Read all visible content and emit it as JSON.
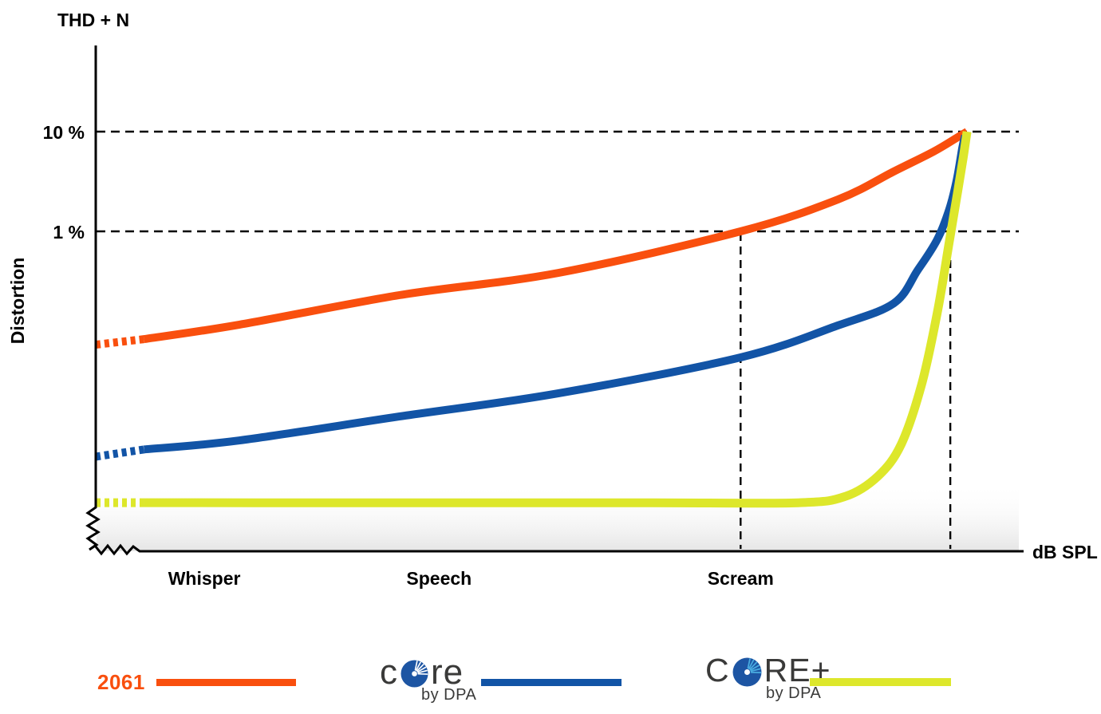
{
  "title": "THD + N",
  "y_axis": {
    "label": "Distortion",
    "ticks": [
      {
        "label": "10 %",
        "value": 10
      },
      {
        "label": "1 %",
        "value": 1
      }
    ]
  },
  "x_axis": {
    "label": "dB SPL",
    "categories": [
      {
        "label": "Whisper",
        "pos": 11.7
      },
      {
        "label": "Speech",
        "pos": 37.0
      },
      {
        "label": "Scream",
        "pos": 69.5
      }
    ]
  },
  "chart_data": {
    "type": "line",
    "title": "THD + N",
    "xlabel": "dB SPL",
    "ylabel": "Distortion",
    "y_scale": "log",
    "y_gridlines_percent": [
      10,
      1
    ],
    "x_axis_note": "no numeric SPL ticks shown; positions are relative 0-100 across the axis",
    "x_categories": [
      {
        "label": "Whisper",
        "pos": 11.7
      },
      {
        "label": "Speech",
        "pos": 37.0
      },
      {
        "label": "Scream",
        "pos": 69.5
      }
    ],
    "vertical_guides": [
      {
        "pos": 69.5,
        "from_percent": 1.0
      },
      {
        "pos": 92.1,
        "from_percent": 1.0
      }
    ],
    "annotations": [
      "axis break (zigzag) at bottom of distortion axis",
      "each curve starts with a dotted segment at lowest SPL",
      "2061 reaches 1% distortion at Scream level and 10% at maximum SPL",
      "CORE stays below 0.1% until near maximum SPL, rising steeply to ~10%",
      "CORE+ stays flat near 0.002% until near maximum SPL, then rises steeply to 10%"
    ],
    "series": [
      {
        "name": "2061",
        "color": "#F94F0E",
        "dashed_head_points": 2,
        "points": [
          [
            0,
            0.073
          ],
          [
            5.2,
            0.083
          ],
          [
            15.5,
            0.116
          ],
          [
            32.7,
            0.229
          ],
          [
            49.9,
            0.384
          ],
          [
            69.5,
            1.0
          ],
          [
            80,
            2.09
          ],
          [
            86,
            3.98
          ],
          [
            90.3,
            6.31
          ],
          [
            92.9,
            8.79
          ],
          [
            93.9,
            10
          ]
        ]
      },
      {
        "name": "CORE by DPA",
        "color": "#1254A6",
        "dashed_head_points": 2,
        "points": [
          [
            0,
            0.0055
          ],
          [
            5.2,
            0.0065
          ],
          [
            15.5,
            0.008
          ],
          [
            32.7,
            0.0139
          ],
          [
            49.9,
            0.0238
          ],
          [
            69.5,
            0.0545
          ],
          [
            80,
            0.114
          ],
          [
            86,
            0.19
          ],
          [
            88.6,
            0.41
          ],
          [
            90.7,
            0.83
          ],
          [
            92,
            1.68
          ],
          [
            92.8,
            3.31
          ],
          [
            93.4,
            6.92
          ],
          [
            93.7,
            9.1
          ]
        ]
      },
      {
        "name": "CORE+ by DPA",
        "color": "#DDE72B",
        "dashed_head_points": 2,
        "points": [
          [
            0,
            0.0019
          ],
          [
            5.2,
            0.0019
          ],
          [
            20,
            0.0019
          ],
          [
            40,
            0.0019
          ],
          [
            60,
            0.0019
          ],
          [
            75.7,
            0.0019
          ],
          [
            80.8,
            0.0022
          ],
          [
            84.3,
            0.0035
          ],
          [
            86.8,
            0.0073
          ],
          [
            89,
            0.029
          ],
          [
            90.7,
            0.153
          ],
          [
            92,
            0.8
          ],
          [
            92.9,
            2.51
          ],
          [
            93.5,
            5.55
          ],
          [
            93.9,
            10
          ]
        ]
      }
    ]
  },
  "legend": {
    "items": [
      {
        "id": "2061",
        "label": "2061",
        "color": "#F94F0E"
      },
      {
        "id": "core",
        "logo_main": [
          "c",
          "re"
        ],
        "logo_sub": "by DPA",
        "color": "#1254A6"
      },
      {
        "id": "core-plus",
        "logo_main": [
          "C",
          "RE+"
        ],
        "logo_sub": "by DPA",
        "color": "#DDE72B"
      }
    ]
  },
  "colors": {
    "orange": "#F94F0E",
    "blue": "#1254A6",
    "yellow": "#DDE72B",
    "logo_text": "#3A3A39",
    "disc_blue": "#1D55A3",
    "disc_rays_cyan": "#49ACE0",
    "axis": "#000000"
  }
}
